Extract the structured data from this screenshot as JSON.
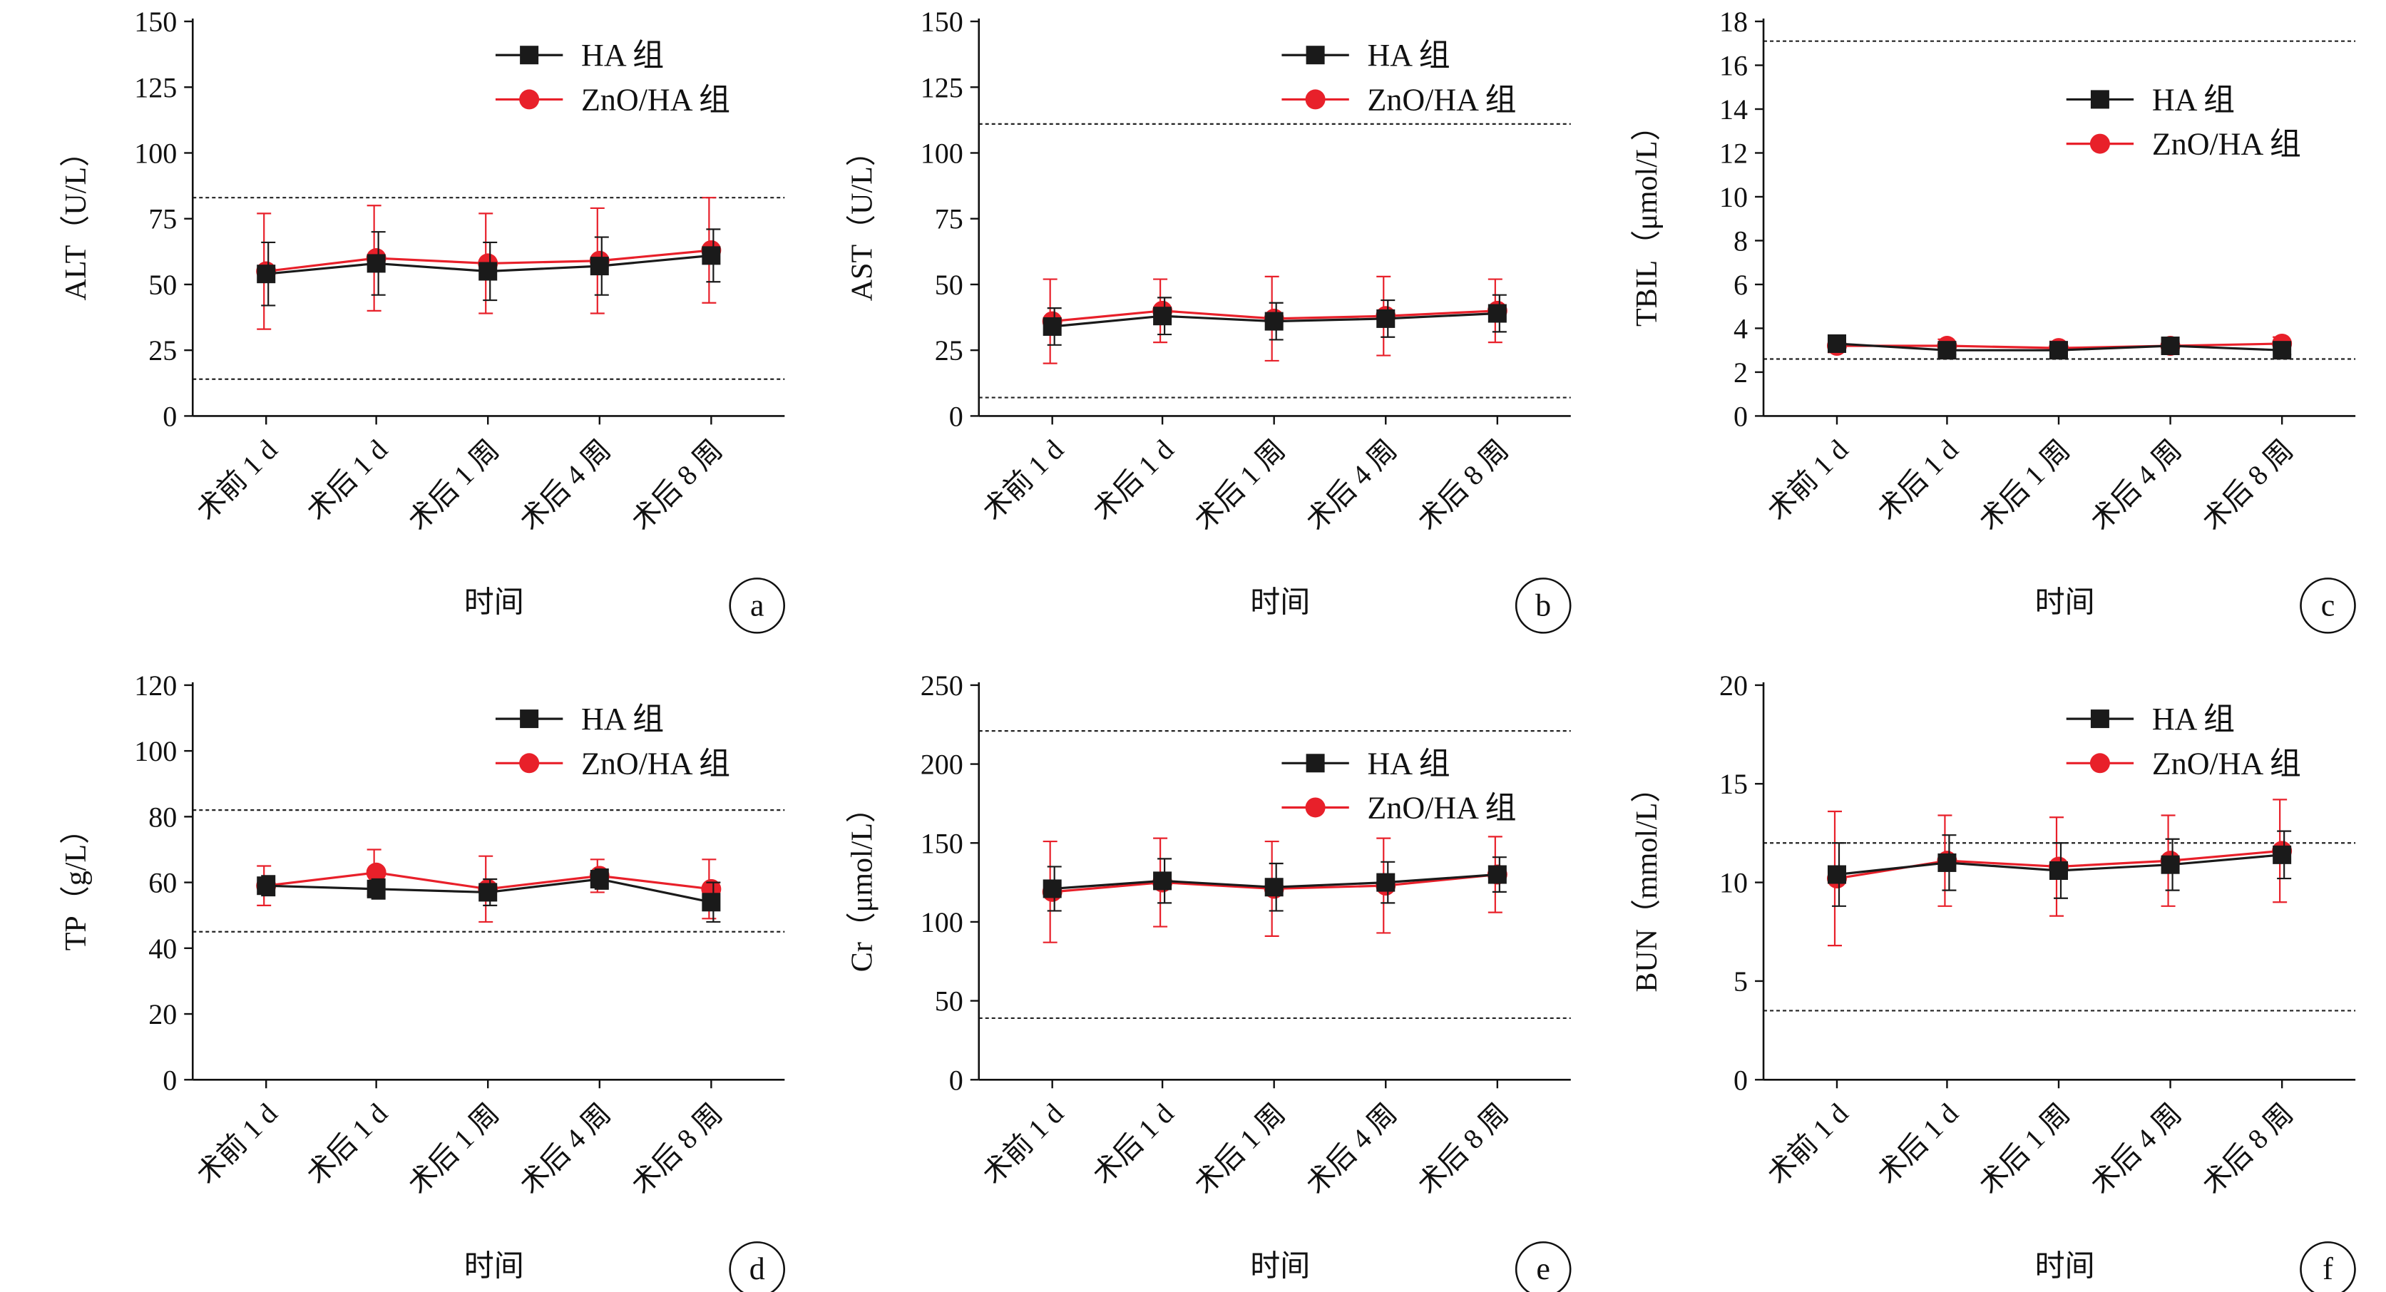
{
  "chart_data": [
    {
      "type": "line",
      "panel_label": "a",
      "x_categories": [
        "术前 1 d",
        "术后 1 d",
        "术后 1 周",
        "术后 4 周",
        "术后 8 周"
      ],
      "xlabel": "时间",
      "ylabel": "ALT（U/L）",
      "ylim": [
        0,
        150
      ],
      "yticks": [
        0,
        25,
        50,
        75,
        100,
        125,
        150
      ],
      "reference_lines": [
        83,
        14
      ],
      "legend": {
        "position": "top-right",
        "entries": [
          "HA 组",
          "ZnO/HA 组"
        ]
      },
      "series": [
        {
          "name": "HA 组",
          "color": "#1a1a1a",
          "marker": "square",
          "values": [
            54,
            58,
            55,
            57,
            61
          ],
          "errors": [
            12,
            12,
            11,
            11,
            10
          ]
        },
        {
          "name": "ZnO/HA 组",
          "color": "#e8202a",
          "marker": "circle",
          "values": [
            55,
            60,
            58,
            59,
            63
          ],
          "errors": [
            22,
            20,
            19,
            20,
            20
          ]
        }
      ]
    },
    {
      "type": "line",
      "panel_label": "b",
      "x_categories": [
        "术前 1 d",
        "术后 1 d",
        "术后 1 周",
        "术后 4 周",
        "术后 8 周"
      ],
      "xlabel": "时间",
      "ylabel": "AST（U/L）",
      "ylim": [
        0,
        150
      ],
      "yticks": [
        0,
        25,
        50,
        75,
        100,
        125,
        150
      ],
      "reference_lines": [
        111,
        7
      ],
      "legend": {
        "position": "top-right",
        "entries": [
          "HA 组",
          "ZnO/HA 组"
        ]
      },
      "series": [
        {
          "name": "HA 组",
          "color": "#1a1a1a",
          "marker": "square",
          "values": [
            34,
            38,
            36,
            37,
            39
          ],
          "errors": [
            7,
            7,
            7,
            7,
            7
          ]
        },
        {
          "name": "ZnO/HA 组",
          "color": "#e8202a",
          "marker": "circle",
          "values": [
            36,
            40,
            37,
            38,
            40
          ],
          "errors": [
            16,
            12,
            16,
            15,
            12
          ]
        }
      ]
    },
    {
      "type": "line",
      "panel_label": "c",
      "x_categories": [
        "术前 1 d",
        "术后 1 d",
        "术后 1 周",
        "术后 4 周",
        "术后 8 周"
      ],
      "xlabel": "时间",
      "ylabel": "TBIL（μmol/L）",
      "ylim": [
        0,
        18
      ],
      "yticks": [
        0,
        2,
        4,
        6,
        8,
        10,
        12,
        14,
        16,
        18
      ],
      "reference_lines": [
        17.1,
        2.6
      ],
      "legend": {
        "position": "top-right",
        "entries": [
          "HA 组",
          "ZnO/HA 组"
        ]
      },
      "series": [
        {
          "name": "HA 组",
          "color": "#1a1a1a",
          "marker": "square",
          "values": [
            3.3,
            3.0,
            3.0,
            3.2,
            3.0
          ],
          "errors": [
            0.2,
            0.2,
            0.2,
            0.2,
            0.2
          ]
        },
        {
          "name": "ZnO/HA 组",
          "color": "#e8202a",
          "marker": "circle",
          "values": [
            3.2,
            3.2,
            3.1,
            3.2,
            3.3
          ],
          "errors": [
            0.3,
            0.3,
            0.3,
            0.3,
            0.3
          ]
        }
      ]
    },
    {
      "type": "line",
      "panel_label": "d",
      "x_categories": [
        "术前 1 d",
        "术后 1 d",
        "术后 1 周",
        "术后 4 周",
        "术后 8 周"
      ],
      "xlabel": "时间",
      "ylabel": "TP（g/L）",
      "ylim": [
        0,
        120
      ],
      "yticks": [
        0,
        20,
        40,
        60,
        80,
        100,
        120
      ],
      "reference_lines": [
        82,
        45
      ],
      "legend": {
        "position": "top-right",
        "entries": [
          "HA 组",
          "ZnO/HA 组"
        ]
      },
      "series": [
        {
          "name": "HA 组",
          "color": "#1a1a1a",
          "marker": "square",
          "values": [
            59,
            58,
            57,
            61,
            54
          ],
          "errors": [
            3,
            3,
            4,
            3,
            6
          ]
        },
        {
          "name": "ZnO/HA 组",
          "color": "#e8202a",
          "marker": "circle",
          "values": [
            59,
            63,
            58,
            62,
            58
          ],
          "errors": [
            6,
            7,
            10,
            5,
            9
          ]
        }
      ]
    },
    {
      "type": "line",
      "panel_label": "e",
      "x_categories": [
        "术前 1 d",
        "术后 1 d",
        "术后 1 周",
        "术后 4 周",
        "术后 8 周"
      ],
      "xlabel": "时间",
      "ylabel": "Cr（μmol/L）",
      "ylim": [
        0,
        250
      ],
      "yticks": [
        0,
        50,
        100,
        150,
        200,
        250
      ],
      "reference_lines": [
        221,
        39
      ],
      "legend": {
        "position": "top-right",
        "entries": [
          "HA 组",
          "ZnO/HA 组"
        ]
      },
      "series": [
        {
          "name": "HA 组",
          "color": "#1a1a1a",
          "marker": "square",
          "values": [
            121,
            126,
            122,
            125,
            130
          ],
          "errors": [
            14,
            14,
            15,
            13,
            11
          ]
        },
        {
          "name": "ZnO/HA 组",
          "color": "#e8202a",
          "marker": "circle",
          "values": [
            119,
            125,
            121,
            123,
            130
          ],
          "errors": [
            32,
            28,
            30,
            30,
            24
          ]
        }
      ]
    },
    {
      "type": "line",
      "panel_label": "f",
      "x_categories": [
        "术前 1 d",
        "术后 1 d",
        "术后 1 周",
        "术后 4 周",
        "术后 8 周"
      ],
      "xlabel": "时间",
      "ylabel": "BUN（mmol/L）",
      "ylim": [
        0,
        20
      ],
      "yticks": [
        0,
        5,
        10,
        15,
        20
      ],
      "reference_lines": [
        12,
        3.5
      ],
      "legend": {
        "position": "top-right",
        "entries": [
          "HA 组",
          "ZnO/HA 组"
        ]
      },
      "series": [
        {
          "name": "HA 组",
          "color": "#1a1a1a",
          "marker": "square",
          "values": [
            10.4,
            11.0,
            10.6,
            10.9,
            11.4
          ],
          "errors": [
            1.6,
            1.4,
            1.4,
            1.3,
            1.2
          ]
        },
        {
          "name": "ZnO/HA 组",
          "color": "#e8202a",
          "marker": "circle",
          "values": [
            10.2,
            11.1,
            10.8,
            11.1,
            11.6
          ],
          "errors": [
            3.4,
            2.3,
            2.5,
            2.3,
            2.6
          ]
        }
      ]
    }
  ]
}
